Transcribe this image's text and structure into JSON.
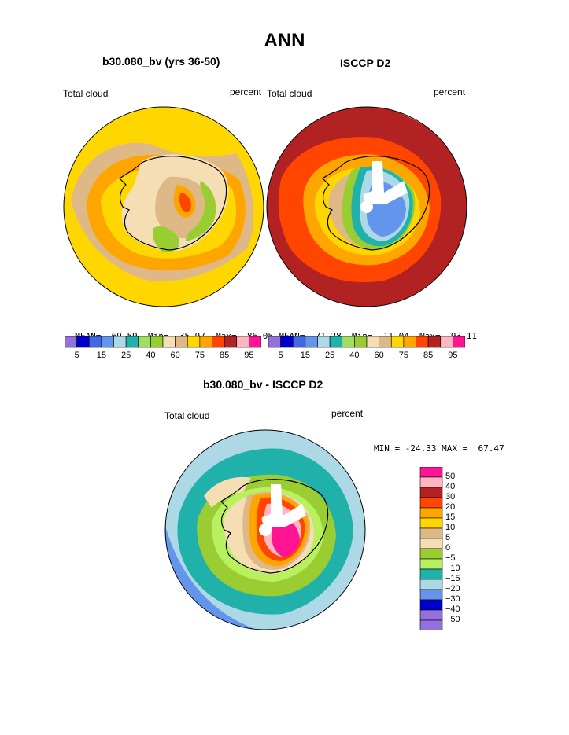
{
  "page": {
    "main_title": "ANN",
    "bottom_title": "b30.080_bv - ISCCP D2"
  },
  "panels": [
    {
      "title": "b30.080_bv (yrs 36-50)",
      "left_label": "Total cloud",
      "right_label": "percent",
      "stats": {
        "mean_label": "MEAN=",
        "mean": "69.59",
        "min_label": "Min=",
        "min": "35.97",
        "max_label": "Max=",
        "max": "86.05"
      }
    },
    {
      "title": "ISCCP D2",
      "left_label": "Total cloud",
      "right_label": "percent",
      "stats": {
        "mean_label": "MEAN=",
        "mean": "71.28",
        "min_label": "Min=",
        "min": "11.04",
        "max_label": "Max=",
        "max": "93.11"
      }
    },
    {
      "left_label": "Total cloud",
      "right_label": "percent",
      "minmax": "MIN = -24.33 MAX =  67.47"
    }
  ],
  "chart_data": [
    {
      "type": "heatmap",
      "title": "b30.080_bv (yrs 36-50)",
      "projection": "south polar stereographic",
      "variable": "Total cloud",
      "units": "percent",
      "mean": 69.59,
      "min": 35.97,
      "max": 86.05,
      "colorbar_levels": [
        5,
        10,
        15,
        20,
        25,
        30,
        40,
        50,
        60,
        70,
        75,
        80,
        85,
        90,
        95
      ],
      "colorbar_labels": [
        "5",
        "15",
        "25",
        "40",
        "60",
        "75",
        "85",
        "95"
      ]
    },
    {
      "type": "heatmap",
      "title": "ISCCP D2",
      "projection": "south polar stereographic",
      "variable": "Total cloud",
      "units": "percent",
      "mean": 71.28,
      "min": 11.04,
      "max": 93.11,
      "colorbar_levels": [
        5,
        10,
        15,
        20,
        25,
        30,
        40,
        50,
        60,
        70,
        75,
        80,
        85,
        90,
        95
      ],
      "colorbar_labels": [
        "5",
        "15",
        "25",
        "40",
        "60",
        "75",
        "85",
        "95"
      ]
    },
    {
      "type": "heatmap",
      "title": "b30.080_bv - ISCCP D2",
      "projection": "south polar stereographic",
      "variable": "Total cloud",
      "units": "percent",
      "min": -24.33,
      "max": 67.47,
      "colorbar_levels": [
        50,
        40,
        30,
        20,
        15,
        10,
        5,
        0,
        -5,
        -10,
        -15,
        -20,
        -30,
        -40,
        -50
      ],
      "colorbar_labels": [
        "50",
        "40",
        "30",
        "20",
        "15",
        "10",
        "5",
        "0",
        "−5",
        "−10",
        "−15",
        "−20",
        "−30",
        "−40",
        "−50"
      ]
    }
  ],
  "colors": {
    "abs_scale": [
      "#9370db",
      "#0000cd",
      "#4169e1",
      "#6495ed",
      "#add8e6",
      "#20b2aa",
      "#a0e060",
      "#9acd32",
      "#f5deb3",
      "#deb887",
      "#ffd700",
      "#ffa500",
      "#ff4500",
      "#b22222",
      "#ffb6c1",
      "#ff1493"
    ],
    "diff_scale": [
      "#ff1493",
      "#ffb6c1",
      "#b22222",
      "#ff4500",
      "#ffa500",
      "#ffd700",
      "#deb887",
      "#f5deb3",
      "#9acd32",
      "#b8f060",
      "#20b2aa",
      "#add8e6",
      "#6495ed",
      "#0000cd",
      "#9370db"
    ]
  }
}
